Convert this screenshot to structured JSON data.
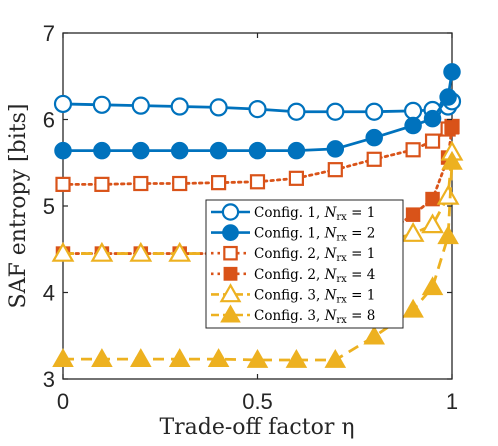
{
  "chart_data": {
    "type": "line",
    "xlabel": "Trade-off factor η",
    "ylabel": "SAF entropy [bits]",
    "xlim": [
      0,
      1
    ],
    "ylim": [
      3,
      7
    ],
    "xticks": [
      {
        "value": 0,
        "label": "0"
      },
      {
        "value": 0.5,
        "label": "0.5"
      },
      {
        "value": 1,
        "label": "1"
      }
    ],
    "yticks": [
      {
        "value": 3,
        "label": "3"
      },
      {
        "value": 4,
        "label": "4"
      },
      {
        "value": 5,
        "label": "5"
      },
      {
        "value": 6,
        "label": "6"
      },
      {
        "value": 7,
        "label": "7"
      }
    ],
    "grid": false,
    "legend_position": "right",
    "series": [
      {
        "label_main": "Config. 1, ",
        "label_sym": "N",
        "label_sub": "rx",
        "label_val": " = 1",
        "color": "#0072BD",
        "dash": "solid",
        "marker": "circle",
        "filled": false,
        "x": [
          0,
          0.1,
          0.2,
          0.3,
          0.4,
          0.5,
          0.6,
          0.7,
          0.8,
          0.9,
          0.95,
          0.99,
          1.0
        ],
        "y": [
          6.18,
          6.17,
          6.16,
          6.15,
          6.14,
          6.12,
          6.09,
          6.09,
          6.09,
          6.1,
          6.11,
          6.15,
          6.21
        ]
      },
      {
        "label_main": "Config. 1, ",
        "label_sym": "N",
        "label_sub": "rx",
        "label_val": " = 2",
        "color": "#0072BD",
        "dash": "solid",
        "marker": "circle",
        "filled": true,
        "x": [
          0,
          0.1,
          0.2,
          0.3,
          0.4,
          0.5,
          0.6,
          0.7,
          0.8,
          0.9,
          0.95,
          0.99,
          1.0
        ],
        "y": [
          5.64,
          5.64,
          5.64,
          5.64,
          5.64,
          5.64,
          5.64,
          5.66,
          5.79,
          5.93,
          6.01,
          6.26,
          6.55
        ]
      },
      {
        "label_main": "Config. 2, ",
        "label_sym": "N",
        "label_sub": "rx",
        "label_val": " = 1",
        "color": "#D95319",
        "dash": "dotted",
        "marker": "square",
        "filled": false,
        "x": [
          0,
          0.1,
          0.2,
          0.3,
          0.4,
          0.5,
          0.6,
          0.7,
          0.8,
          0.9,
          0.95,
          0.99,
          1.0
        ],
        "y": [
          5.25,
          5.25,
          5.26,
          5.26,
          5.27,
          5.28,
          5.32,
          5.42,
          5.54,
          5.65,
          5.75,
          5.89,
          5.92
        ]
      },
      {
        "label_main": "Config. 2, ",
        "label_sym": "N",
        "label_sub": "rx",
        "label_val": " = 4",
        "color": "#D95319",
        "dash": "dotted",
        "marker": "square",
        "filled": true,
        "x": [
          0,
          0.1,
          0.2,
          0.3,
          0.4,
          0.5,
          0.6,
          0.7,
          0.8,
          0.9,
          0.95,
          0.99,
          1.0
        ],
        "y": [
          4.45,
          4.45,
          4.45,
          4.45,
          4.45,
          4.45,
          4.45,
          4.46,
          4.6,
          4.9,
          5.08,
          5.56,
          5.91
        ]
      },
      {
        "label_main": "Config. 3, ",
        "label_sym": "N",
        "label_sub": "rx",
        "label_val": " = 1",
        "color": "#EDB120",
        "dash": "dashed",
        "marker": "triangle",
        "filled": false,
        "x": [
          0,
          0.1,
          0.2,
          0.3,
          0.4,
          0.5,
          0.6,
          0.7,
          0.8,
          0.9,
          0.95,
          0.99,
          1.0
        ],
        "y": [
          4.45,
          4.45,
          4.45,
          4.45,
          4.45,
          4.45,
          4.45,
          4.46,
          4.55,
          4.68,
          4.78,
          5.11,
          5.62
        ]
      },
      {
        "label_main": "Config. 3, ",
        "label_sym": "N",
        "label_sub": "rx",
        "label_val": " = 8",
        "color": "#EDB120",
        "dash": "dashed",
        "marker": "triangle",
        "filled": true,
        "x": [
          0,
          0.1,
          0.2,
          0.3,
          0.4,
          0.5,
          0.6,
          0.7,
          0.8,
          0.9,
          0.95,
          0.99,
          1.0
        ],
        "y": [
          3.23,
          3.23,
          3.23,
          3.23,
          3.23,
          3.22,
          3.22,
          3.22,
          3.49,
          3.8,
          4.06,
          4.65,
          5.51
        ]
      }
    ]
  }
}
